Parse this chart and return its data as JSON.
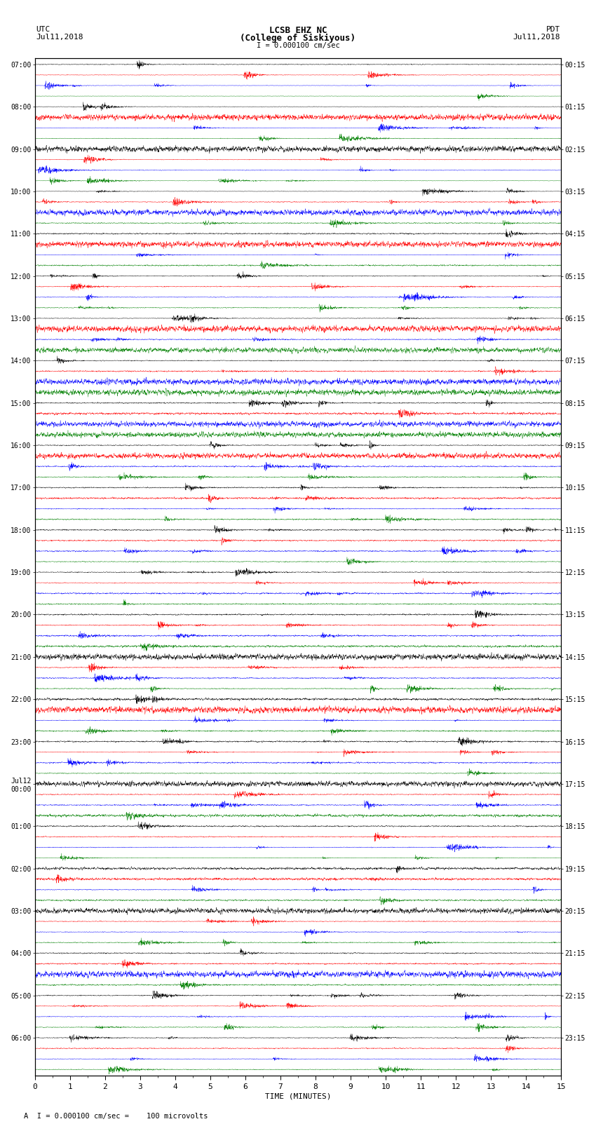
{
  "title_line1": "LCSB EHZ NC",
  "title_line2": "(College of Siskiyous)",
  "scale_text": "I = 0.000100 cm/sec",
  "bottom_text": "A  I = 0.000100 cm/sec =    100 microvolts",
  "utc_label": "UTC",
  "pdt_label": "PDT",
  "date_left": "Jul11,2018",
  "date_right": "Jul11,2018",
  "xlabel": "TIME (MINUTES)",
  "colors": [
    "black",
    "red",
    "blue",
    "green"
  ],
  "bg_color": "white",
  "n_rows": 96,
  "n_minutes": 15,
  "samples_per_minute": 200,
  "noise_base": 0.1,
  "left_labels": [
    "07:00",
    "",
    "",
    "",
    "08:00",
    "",
    "",
    "",
    "09:00",
    "",
    "",
    "",
    "10:00",
    "",
    "",
    "",
    "11:00",
    "",
    "",
    "",
    "12:00",
    "",
    "",
    "",
    "13:00",
    "",
    "",
    "",
    "14:00",
    "",
    "",
    "",
    "15:00",
    "",
    "",
    "",
    "16:00",
    "",
    "",
    "",
    "17:00",
    "",
    "",
    "",
    "18:00",
    "",
    "",
    "",
    "19:00",
    "",
    "",
    "",
    "20:00",
    "",
    "",
    "",
    "21:00",
    "",
    "",
    "",
    "22:00",
    "",
    "",
    "",
    "23:00",
    "",
    "",
    "",
    "Jul12\n00:00",
    "",
    "",
    "",
    "01:00",
    "",
    "",
    "",
    "02:00",
    "",
    "",
    "",
    "03:00",
    "",
    "",
    "",
    "04:00",
    "",
    "",
    "",
    "05:00",
    "",
    "",
    "",
    "06:00",
    "",
    "",
    ""
  ],
  "right_labels": [
    "00:15",
    "",
    "",
    "",
    "01:15",
    "",
    "",
    "",
    "02:15",
    "",
    "",
    "",
    "03:15",
    "",
    "",
    "",
    "04:15",
    "",
    "",
    "",
    "05:15",
    "",
    "",
    "",
    "06:15",
    "",
    "",
    "",
    "07:15",
    "",
    "",
    "",
    "08:15",
    "",
    "",
    "",
    "09:15",
    "",
    "",
    "",
    "10:15",
    "",
    "",
    "",
    "11:15",
    "",
    "",
    "",
    "12:15",
    "",
    "",
    "",
    "13:15",
    "",
    "",
    "",
    "14:15",
    "",
    "",
    "",
    "15:15",
    "",
    "",
    "",
    "16:15",
    "",
    "",
    "",
    "17:15",
    "",
    "",
    "",
    "18:15",
    "",
    "",
    "",
    "19:15",
    "",
    "",
    "",
    "20:15",
    "",
    "",
    "",
    "21:15",
    "",
    "",
    "",
    "22:15",
    "",
    "",
    "",
    "23:15",
    "",
    "",
    ""
  ]
}
